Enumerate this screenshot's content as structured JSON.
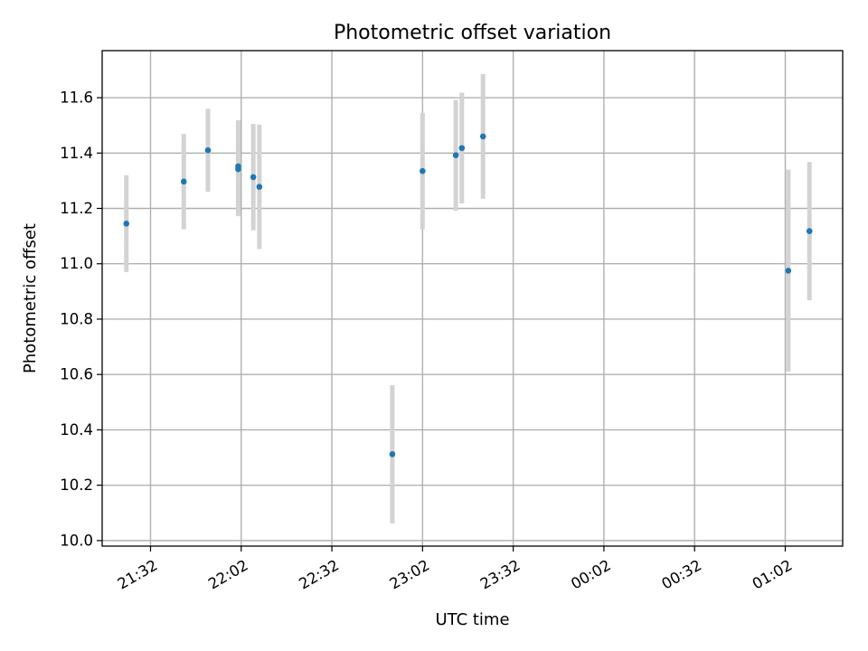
{
  "chart_data": {
    "type": "scatter",
    "title": "Photometric offset variation",
    "xlabel": "UTC time",
    "ylabel": "Photometric offset",
    "x_axis": {
      "kind": "time",
      "range": [
        "21:16",
        "01:21"
      ],
      "ticks": [
        "21:32",
        "22:02",
        "22:32",
        "23:02",
        "23:32",
        "00:02",
        "00:32",
        "01:02"
      ]
    },
    "y_axis": {
      "range": [
        9.98,
        11.77
      ],
      "ticks": [
        "10.0",
        "10.2",
        "10.4",
        "10.6",
        "10.8",
        "11.0",
        "11.2",
        "11.4",
        "11.6"
      ]
    },
    "grid": true,
    "colors": {
      "point": "#1f77b4",
      "errorbar": "#d3d3d3",
      "grid": "#b0b0b0"
    },
    "points": [
      {
        "x": "21:24",
        "y": 11.145,
        "yerr": 0.175
      },
      {
        "x": "21:43",
        "y": 11.297,
        "yerr": 0.172
      },
      {
        "x": "21:51",
        "y": 11.41,
        "yerr": 0.15
      },
      {
        "x": "22:01",
        "y": 11.352,
        "yerr": 0.167
      },
      {
        "x": "22:01",
        "y": 11.342,
        "yerr": 0.17
      },
      {
        "x": "22:06",
        "y": 11.313,
        "yerr": 0.192
      },
      {
        "x": "22:08",
        "y": 11.278,
        "yerr": 0.225
      },
      {
        "x": "22:52",
        "y": 10.312,
        "yerr": 0.25
      },
      {
        "x": "23:02",
        "y": 11.335,
        "yerr": 0.21
      },
      {
        "x": "23:13",
        "y": 11.392,
        "yerr": 0.2
      },
      {
        "x": "23:15",
        "y": 11.418,
        "yerr": 0.2
      },
      {
        "x": "23:22",
        "y": 11.46,
        "yerr": 0.225
      },
      {
        "x": "01:03",
        "y": 10.975,
        "yerr": 0.365
      },
      {
        "x": "01:10",
        "y": 11.118,
        "yerr": 0.25
      }
    ]
  }
}
